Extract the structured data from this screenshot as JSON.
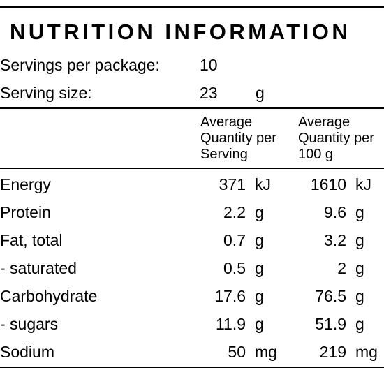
{
  "panel": {
    "title": "NUTRITION INFORMATION",
    "servings": {
      "label": "Servings per package:",
      "value": "10"
    },
    "serving_size": {
      "label": "Serving size:",
      "value": "23",
      "unit": "g"
    },
    "column_headers": [
      {
        "lines": [
          "Average",
          "Quantity per",
          "Serving"
        ]
      },
      {
        "lines": [
          "Average",
          "Quantity per",
          "100 g"
        ]
      }
    ],
    "rows": [
      {
        "label": "Energy",
        "per_serving": "371",
        "per_serving_unit": "kJ",
        "per_100g": "1610",
        "per_100g_unit": "kJ"
      },
      {
        "label": "Protein",
        "per_serving": "2.2",
        "per_serving_unit": "g",
        "per_100g": "9.6",
        "per_100g_unit": "g"
      },
      {
        "label": "Fat, total",
        "per_serving": "0.7",
        "per_serving_unit": "g",
        "per_100g": "3.2",
        "per_100g_unit": "g"
      },
      {
        "label": "- saturated",
        "per_serving": "0.5",
        "per_serving_unit": "g",
        "per_100g": "2",
        "per_100g_unit": "g"
      },
      {
        "label": "Carbohydrate",
        "per_serving": "17.6",
        "per_serving_unit": "g",
        "per_100g": "76.5",
        "per_100g_unit": "g"
      },
      {
        "label": "- sugars",
        "per_serving": "11.9",
        "per_serving_unit": "g",
        "per_100g": "51.9",
        "per_100g_unit": "g"
      },
      {
        "label": "Sodium",
        "per_serving": "50",
        "per_serving_unit": "mg",
        "per_100g": "219",
        "per_100g_unit": "mg"
      }
    ]
  }
}
